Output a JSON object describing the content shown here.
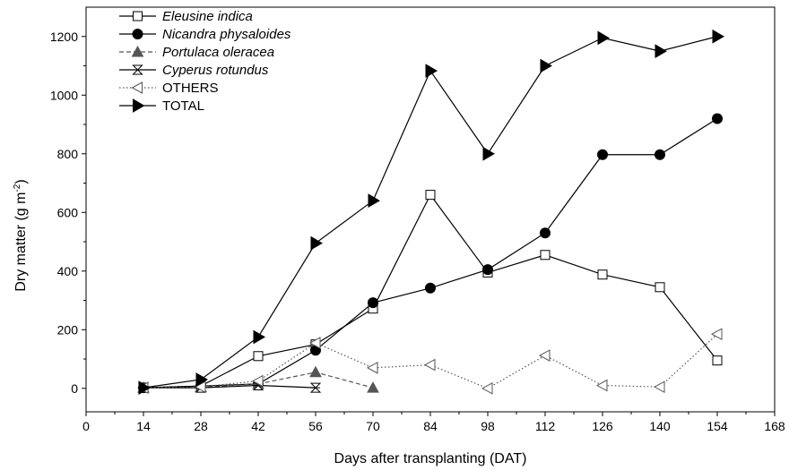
{
  "chart_data": {
    "type": "line",
    "xlabel": "Days after transplanting (DAT)",
    "ylabel_main": "Dry matter (g m",
    "ylabel_sup": "-2",
    "ylabel_end": ")",
    "xlim": [
      0,
      168
    ],
    "ylim": [
      -80,
      1300
    ],
    "xticks": [
      0,
      14,
      28,
      42,
      56,
      70,
      84,
      98,
      112,
      126,
      140,
      154,
      168
    ],
    "yticks": [
      0,
      200,
      400,
      600,
      800,
      1000,
      1200
    ],
    "legend_position": "top-left",
    "grid": false,
    "series": [
      {
        "name": "Eleusine indica",
        "italic": true,
        "marker": "square-open",
        "line": "solid",
        "color": "#000000",
        "x": [
          14,
          28,
          42,
          56,
          70,
          84,
          98,
          112,
          126,
          140,
          154
        ],
        "y": [
          2,
          8,
          110,
          150,
          272,
          660,
          395,
          455,
          388,
          345,
          95
        ]
      },
      {
        "name": "Nicandra physaloides",
        "italic": true,
        "marker": "circle-filled",
        "line": "solid",
        "color": "#000000",
        "x": [
          14,
          28,
          42,
          56,
          70,
          84,
          98,
          112,
          126,
          140,
          154
        ],
        "y": [
          2,
          8,
          15,
          130,
          292,
          342,
          405,
          530,
          797,
          797,
          920
        ]
      },
      {
        "name": "Portulaca oleracea",
        "italic": true,
        "marker": "triangle-up-filled",
        "line": "dashed",
        "color": "#555555",
        "x": [
          14,
          28,
          42,
          56,
          70
        ],
        "y": [
          2,
          4,
          15,
          55,
          2
        ]
      },
      {
        "name": "Cyperus rotundus",
        "italic": true,
        "marker": "hourglass",
        "line": "solid",
        "color": "#000000",
        "x": [
          14,
          28,
          42,
          56
        ],
        "y": [
          2,
          2,
          10,
          2
        ]
      },
      {
        "name": "OTHERS",
        "italic": false,
        "marker": "triangle-left-open",
        "line": "dotted",
        "color": "#555555",
        "x": [
          14,
          28,
          42,
          56,
          70,
          84,
          98,
          112,
          126,
          140,
          154
        ],
        "y": [
          2,
          5,
          25,
          155,
          70,
          80,
          0,
          112,
          10,
          5,
          185
        ]
      },
      {
        "name": "TOTAL",
        "italic": false,
        "marker": "triangle-right-filled",
        "line": "solid",
        "color": "#000000",
        "x": [
          14,
          28,
          42,
          56,
          70,
          84,
          98,
          112,
          126,
          140,
          154
        ],
        "y": [
          2,
          30,
          175,
          495,
          640,
          1083,
          800,
          1100,
          1195,
          1150,
          1200
        ]
      }
    ]
  }
}
